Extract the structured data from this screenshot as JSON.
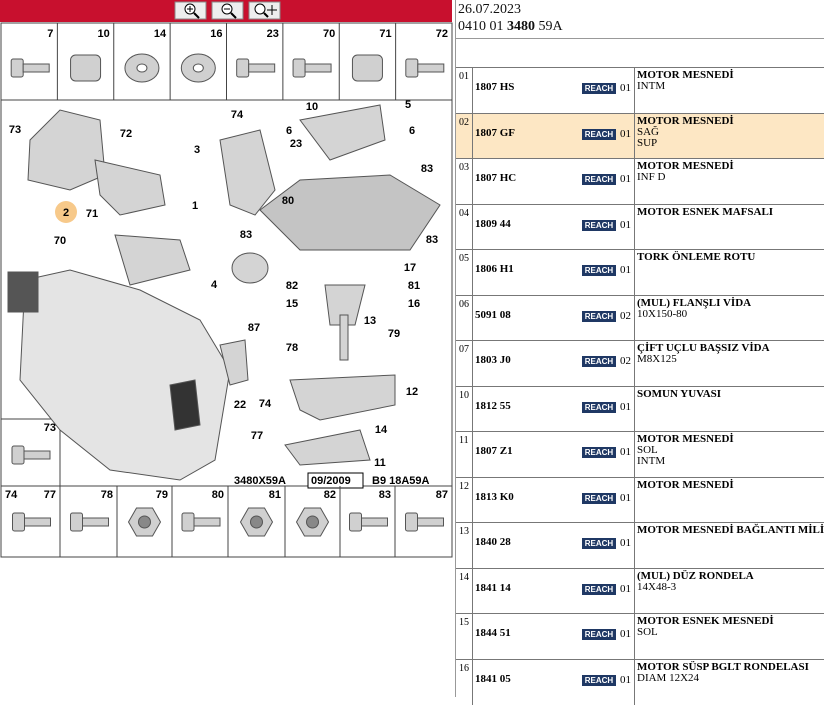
{
  "header": {
    "date": "26.07.2023",
    "ref_parts": [
      "0410 01",
      "3480",
      "59A"
    ]
  },
  "parts_top": [
    "7",
    "10",
    "14",
    "16",
    "23",
    "70",
    "71",
    "72"
  ],
  "part_side": "73",
  "parts_bottom": [
    "74",
    "77",
    "78",
    "79",
    "80",
    "81",
    "82",
    "83",
    "87"
  ],
  "diagram": {
    "callouts": [
      "73",
      "72",
      "2",
      "71",
      "70",
      "1",
      "3",
      "74",
      "6",
      "10",
      "5",
      "6",
      "23",
      "83",
      "80",
      "83",
      "17",
      "83",
      "4",
      "82",
      "81",
      "15",
      "16",
      "13",
      "79",
      "87",
      "78",
      "22",
      "12",
      "74",
      "14",
      "77",
      "11"
    ],
    "footer": {
      "code": "3480X59A",
      "date": "09/2009",
      "ref": "B9 18A59A"
    }
  },
  "rows": [
    {
      "index": "01",
      "code": "1807 HS",
      "badge": "REACH",
      "qty": "01",
      "lines": [
        "MOTOR MESNEDİ",
        "INTM"
      ]
    },
    {
      "index": "02",
      "code": "1807 GF",
      "badge": "REACH",
      "qty": "01",
      "lines": [
        "MOTOR MESNEDİ",
        "SAĞ",
        "SUP"
      ],
      "selected": true
    },
    {
      "index": "03",
      "code": "1807 HC",
      "badge": "REACH",
      "qty": "01",
      "lines": [
        "MOTOR MESNEDİ",
        "INF D"
      ]
    },
    {
      "index": "04",
      "code": "1809 44",
      "badge": "REACH",
      "qty": "01",
      "lines": [
        "MOTOR ESNEK MAFSALI"
      ]
    },
    {
      "index": "05",
      "code": "1806 H1",
      "badge": "REACH",
      "qty": "01",
      "lines": [
        "TORK ÖNLEME ROTU"
      ]
    },
    {
      "index": "06",
      "code": "5091 08",
      "badge": "REACH",
      "qty": "02",
      "lines": [
        "(MUL) FLANŞLI VİDA",
        "10X150-80"
      ]
    },
    {
      "index": "07",
      "code": "1803 J0",
      "badge": "REACH",
      "qty": "02",
      "lines": [
        "ÇİFT UÇLU BAŞSIZ VİDA",
        "M8X125"
      ]
    },
    {
      "index": "10",
      "code": "1812 55",
      "badge": "REACH",
      "qty": "01",
      "lines": [
        "SOMUN YUVASI"
      ]
    },
    {
      "index": "11",
      "code": "1807 Z1",
      "badge": "REACH",
      "qty": "01",
      "lines": [
        "MOTOR MESNEDİ",
        "SOL",
        "INTM"
      ]
    },
    {
      "index": "12",
      "code": "1813 K0",
      "badge": "REACH",
      "qty": "01",
      "lines": [
        "MOTOR MESNEDİ"
      ]
    },
    {
      "index": "13",
      "code": "1840 28",
      "badge": "REACH",
      "qty": "01",
      "lines": [
        "MOTOR MESNEDİ BAĞLANTI MİLİ"
      ]
    },
    {
      "index": "14",
      "code": "1841 14",
      "badge": "REACH",
      "qty": "01",
      "lines": [
        "(MUL) DÜZ RONDELA",
        "14X48-3"
      ]
    },
    {
      "index": "15",
      "code": "1844 51",
      "badge": "REACH",
      "qty": "01",
      "lines": [
        "MOTOR ESNEK MESNEDİ",
        "SOL"
      ]
    },
    {
      "index": "16",
      "code": "1841 05",
      "badge": "REACH",
      "qty": "01",
      "lines": [
        "MOTOR SÜSP BGLT RONDELASI",
        "DIAM 12X24"
      ]
    }
  ]
}
